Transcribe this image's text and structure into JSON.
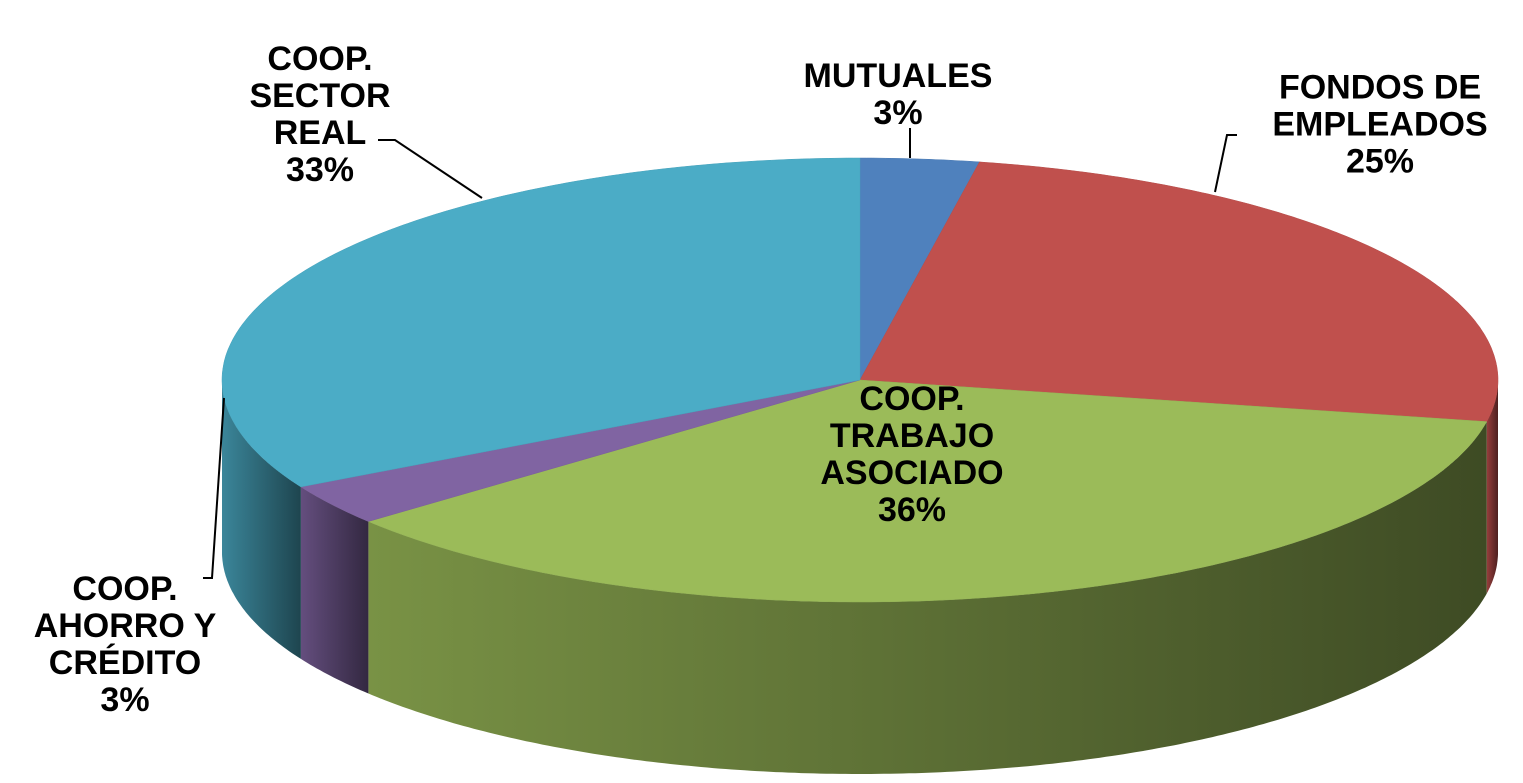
{
  "chart_data": {
    "type": "pie",
    "categories": [
      "MUTUALES",
      "FONDOS DE EMPLEADOS",
      "COOP. TRABAJO ASOCIADO",
      "COOP. AHORRO Y CRÉDITO",
      "COOP. SECTOR REAL"
    ],
    "values": [
      3,
      25,
      36,
      3,
      33
    ],
    "value_labels": [
      "3%",
      "25%",
      "36%",
      "3%",
      "33%"
    ],
    "colors": [
      "#4f81bd",
      "#c0504d",
      "#9bbb59",
      "#8064a2",
      "#4bacc6"
    ]
  }
}
